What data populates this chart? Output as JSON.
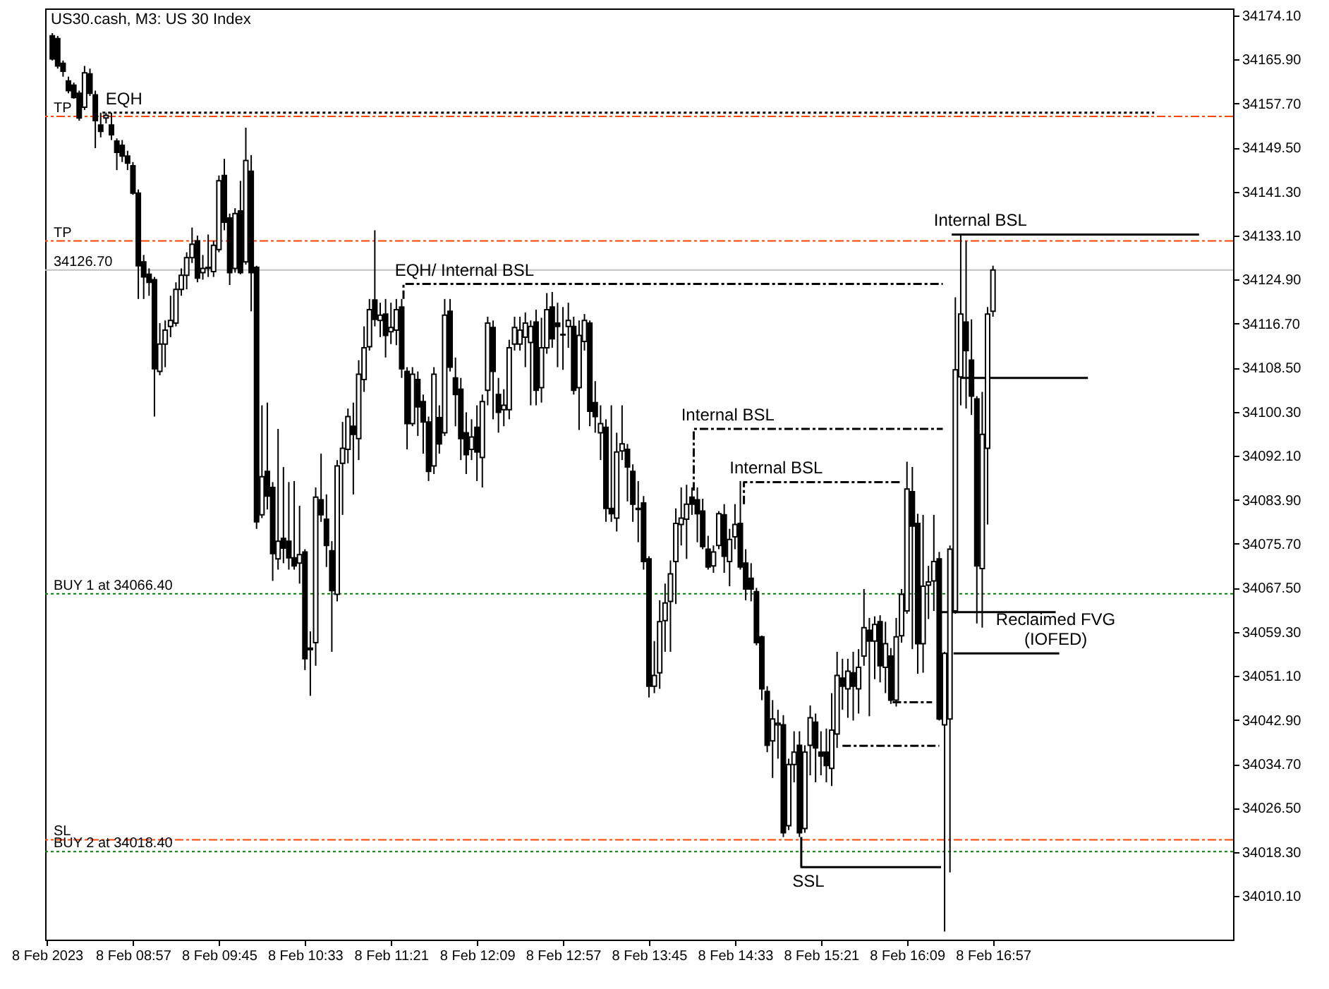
{
  "chart_data": {
    "type": "candlestick",
    "title": "US30.cash, M3:  US 30 Index",
    "color": "#000000",
    "xlim": [
      "2023-02-08T08:08",
      "2023-02-08T19:11"
    ],
    "xticks": [
      {
        "value": "2023-02-08T08:09",
        "label": "8 Feb 2023"
      },
      {
        "value": "2023-02-08T08:57",
        "label": "8 Feb 08:57"
      },
      {
        "value": "2023-02-08T09:45",
        "label": "8 Feb 09:45"
      },
      {
        "value": "2023-02-08T10:33",
        "label": "8 Feb 10:33"
      },
      {
        "value": "2023-02-08T11:21",
        "label": "8 Feb 11:21"
      },
      {
        "value": "2023-02-08T12:09",
        "label": "8 Feb 12:09"
      },
      {
        "value": "2023-02-08T12:57",
        "label": "8 Feb 12:57"
      },
      {
        "value": "2023-02-08T13:45",
        "label": "8 Feb 13:45"
      },
      {
        "value": "2023-02-08T14:33",
        "label": "8 Feb 14:33"
      },
      {
        "value": "2023-02-08T15:21",
        "label": "8 Feb 15:21"
      },
      {
        "value": "2023-02-08T16:09",
        "label": "8 Feb 16:09"
      },
      {
        "value": "2023-02-08T16:57",
        "label": "8 Feb 16:57"
      }
    ],
    "ylim": [
      34002.0,
      34175.4
    ],
    "yticks": [
      {
        "value": 34174.1,
        "label": "34174.10"
      },
      {
        "value": 34165.9,
        "label": "34165.90"
      },
      {
        "value": 34157.7,
        "label": "34157.70"
      },
      {
        "value": 34149.5,
        "label": "34149.50"
      },
      {
        "value": 34141.3,
        "label": "34141.30"
      },
      {
        "value": 34133.1,
        "label": "34133.10"
      },
      {
        "value": 34124.9,
        "label": "34124.90"
      },
      {
        "value": 34116.7,
        "label": "34116.70"
      },
      {
        "value": 34108.5,
        "label": "34108.50"
      },
      {
        "value": 34100.3,
        "label": "34100.30"
      },
      {
        "value": 34092.1,
        "label": "34092.10"
      },
      {
        "value": 34083.9,
        "label": "34083.90"
      },
      {
        "value": 34075.7,
        "label": "34075.70"
      },
      {
        "value": 34067.5,
        "label": "34067.50"
      },
      {
        "value": 34059.3,
        "label": "34059.30"
      },
      {
        "value": 34051.1,
        "label": "34051.10"
      },
      {
        "value": 34042.9,
        "label": "34042.90"
      },
      {
        "value": 34034.7,
        "label": "34034.70"
      },
      {
        "value": 34026.5,
        "label": "34026.50"
      },
      {
        "value": 34018.3,
        "label": "34018.30"
      },
      {
        "value": 34010.1,
        "label": "34010.10"
      }
    ],
    "x": [
      "2023-02-08T08:12",
      "2023-02-08T08:15",
      "2023-02-08T08:18",
      "2023-02-08T08:21",
      "2023-02-08T08:24",
      "2023-02-08T08:27",
      "2023-02-08T08:30",
      "2023-02-08T08:33",
      "2023-02-08T08:36",
      "2023-02-08T08:39",
      "2023-02-08T08:42",
      "2023-02-08T08:45",
      "2023-02-08T08:48",
      "2023-02-08T08:51",
      "2023-02-08T08:54",
      "2023-02-08T08:57",
      "2023-02-08T09:00",
      "2023-02-08T09:03",
      "2023-02-08T09:06",
      "2023-02-08T09:09",
      "2023-02-08T09:12",
      "2023-02-08T09:15",
      "2023-02-08T09:18",
      "2023-02-08T09:21",
      "2023-02-08T09:24",
      "2023-02-08T09:27",
      "2023-02-08T09:30",
      "2023-02-08T09:33",
      "2023-02-08T09:36",
      "2023-02-08T09:39",
      "2023-02-08T09:42",
      "2023-02-08T09:45",
      "2023-02-08T09:48",
      "2023-02-08T09:51",
      "2023-02-08T09:54",
      "2023-02-08T09:57",
      "2023-02-08T10:00",
      "2023-02-08T10:03",
      "2023-02-08T10:06",
      "2023-02-08T10:09",
      "2023-02-08T10:12",
      "2023-02-08T10:15",
      "2023-02-08T10:18",
      "2023-02-08T10:21",
      "2023-02-08T10:24",
      "2023-02-08T10:27",
      "2023-02-08T10:30",
      "2023-02-08T10:33",
      "2023-02-08T10:36",
      "2023-02-08T10:39",
      "2023-02-08T10:42",
      "2023-02-08T10:45",
      "2023-02-08T10:48",
      "2023-02-08T10:51",
      "2023-02-08T10:54",
      "2023-02-08T10:57",
      "2023-02-08T11:00",
      "2023-02-08T11:03",
      "2023-02-08T11:06",
      "2023-02-08T11:09",
      "2023-02-08T11:12",
      "2023-02-08T11:15",
      "2023-02-08T11:18",
      "2023-02-08T11:21",
      "2023-02-08T11:24",
      "2023-02-08T11:27",
      "2023-02-08T11:30",
      "2023-02-08T11:33",
      "2023-02-08T11:36",
      "2023-02-08T11:39",
      "2023-02-08T11:42",
      "2023-02-08T11:45",
      "2023-02-08T11:48",
      "2023-02-08T11:51",
      "2023-02-08T11:54",
      "2023-02-08T11:57",
      "2023-02-08T12:00",
      "2023-02-08T12:03",
      "2023-02-08T12:06",
      "2023-02-08T12:09",
      "2023-02-08T12:12",
      "2023-02-08T12:15",
      "2023-02-08T12:18",
      "2023-02-08T12:21",
      "2023-02-08T12:24",
      "2023-02-08T12:27",
      "2023-02-08T12:30",
      "2023-02-08T12:33",
      "2023-02-08T12:36",
      "2023-02-08T12:39",
      "2023-02-08T12:42",
      "2023-02-08T12:45",
      "2023-02-08T12:48",
      "2023-02-08T12:51",
      "2023-02-08T12:54",
      "2023-02-08T12:57",
      "2023-02-08T13:00",
      "2023-02-08T13:03",
      "2023-02-08T13:06",
      "2023-02-08T13:09",
      "2023-02-08T13:12",
      "2023-02-08T13:15",
      "2023-02-08T13:18",
      "2023-02-08T13:21",
      "2023-02-08T13:24",
      "2023-02-08T13:27",
      "2023-02-08T13:30",
      "2023-02-08T13:33",
      "2023-02-08T13:36",
      "2023-02-08T13:39",
      "2023-02-08T13:42",
      "2023-02-08T13:45",
      "2023-02-08T13:48",
      "2023-02-08T13:51",
      "2023-02-08T13:54",
      "2023-02-08T13:57",
      "2023-02-08T14:00",
      "2023-02-08T14:03",
      "2023-02-08T14:06",
      "2023-02-08T14:09",
      "2023-02-08T14:12",
      "2023-02-08T14:15",
      "2023-02-08T14:18",
      "2023-02-08T14:21",
      "2023-02-08T14:24",
      "2023-02-08T14:27",
      "2023-02-08T14:30",
      "2023-02-08T14:33",
      "2023-02-08T14:36",
      "2023-02-08T14:39",
      "2023-02-08T14:42",
      "2023-02-08T14:45",
      "2023-02-08T14:48",
      "2023-02-08T14:51",
      "2023-02-08T14:54",
      "2023-02-08T14:57",
      "2023-02-08T15:00",
      "2023-02-08T15:03",
      "2023-02-08T15:06",
      "2023-02-08T15:09",
      "2023-02-08T15:12",
      "2023-02-08T15:15",
      "2023-02-08T15:18",
      "2023-02-08T15:21",
      "2023-02-08T15:24",
      "2023-02-08T15:27",
      "2023-02-08T15:30",
      "2023-02-08T15:33",
      "2023-02-08T15:36",
      "2023-02-08T15:39",
      "2023-02-08T15:42",
      "2023-02-08T15:45",
      "2023-02-08T15:48",
      "2023-02-08T15:51",
      "2023-02-08T15:54",
      "2023-02-08T15:57",
      "2023-02-08T16:00",
      "2023-02-08T16:03",
      "2023-02-08T16:06",
      "2023-02-08T16:09",
      "2023-02-08T16:12",
      "2023-02-08T16:15",
      "2023-02-08T16:18",
      "2023-02-08T16:21",
      "2023-02-08T16:24",
      "2023-02-08T16:27",
      "2023-02-08T16:30",
      "2023-02-08T16:33",
      "2023-02-08T16:36",
      "2023-02-08T16:39",
      "2023-02-08T16:42",
      "2023-02-08T16:45",
      "2023-02-08T16:48",
      "2023-02-08T16:51",
      "2023-02-08T16:54",
      "2023-02-08T16:57"
    ],
    "ohlc": [
      [
        34170.3,
        34170.8,
        34165.7,
        34166.0
      ],
      [
        34169.8,
        34170.3,
        34164.2,
        34164.7
      ],
      [
        34165.2,
        34165.7,
        34162.7,
        34163.7
      ],
      [
        34161.9,
        34162.7,
        34159.6,
        34160.1
      ],
      [
        34161.1,
        34161.6,
        34158.6,
        34158.8
      ],
      [
        34159.6,
        34160.1,
        34154.5,
        34155.0
      ],
      [
        34157.0,
        34164.7,
        34156.5,
        34163.4
      ],
      [
        34163.2,
        34164.2,
        34159.1,
        34159.6
      ],
      [
        34159.3,
        34160.1,
        34149.4,
        34154.5
      ],
      [
        34153.7,
        34156.0,
        34151.4,
        34152.5
      ],
      [
        34155.0,
        34156.0,
        34154.0,
        34155.5
      ],
      [
        34153.7,
        34156.0,
        34150.9,
        34151.9
      ],
      [
        34150.7,
        34151.2,
        34145.3,
        34148.6
      ],
      [
        34149.9,
        34150.9,
        34146.8,
        34147.9
      ],
      [
        34147.9,
        34148.9,
        34145.3,
        34146.6
      ],
      [
        34146.1,
        34146.8,
        34140.7,
        34141.0
      ],
      [
        34141.0,
        34141.7,
        34121.3,
        34127.5
      ],
      [
        34128.2,
        34129.5,
        34121.3,
        34125.4
      ],
      [
        34125.9,
        34127.0,
        34121.9,
        34124.4
      ],
      [
        34124.9,
        34125.4,
        34099.4,
        34108.3
      ],
      [
        34107.8,
        34116.8,
        34107.1,
        34112.9
      ],
      [
        34112.9,
        34117.3,
        34108.6,
        34115.5
      ],
      [
        34116.2,
        34121.9,
        34114.2,
        34117.3
      ],
      [
        34116.8,
        34124.4,
        34116.2,
        34123.1
      ],
      [
        34123.1,
        34127.0,
        34121.9,
        34125.7
      ],
      [
        34125.7,
        34130.0,
        34123.1,
        34129.0
      ],
      [
        34129.0,
        34134.6,
        34128.0,
        34131.5
      ],
      [
        34132.1,
        34133.1,
        34124.4,
        34125.2
      ],
      [
        34126.2,
        34129.5,
        34124.9,
        34127.0
      ],
      [
        34127.2,
        34133.3,
        34125.4,
        34127.0
      ],
      [
        34126.4,
        34132.1,
        34125.4,
        34131.3
      ],
      [
        34130.5,
        34144.3,
        34130.0,
        34143.3
      ],
      [
        34144.3,
        34147.4,
        34134.1,
        34135.6
      ],
      [
        34136.4,
        34137.2,
        34123.9,
        34126.2
      ],
      [
        34127.0,
        34138.2,
        34126.2,
        34137.2
      ],
      [
        34137.7,
        34143.3,
        34125.9,
        34126.2
      ],
      [
        34128.2,
        34153.2,
        34127.7,
        34147.1
      ],
      [
        34145.1,
        34148.1,
        34119.0,
        34126.2
      ],
      [
        34127.2,
        34127.5,
        34078.5,
        34079.8
      ],
      [
        34081.1,
        34101.5,
        34080.5,
        34088.2
      ],
      [
        34089.2,
        34102.0,
        34082.1,
        34084.6
      ],
      [
        34086.2,
        34087.2,
        34068.8,
        34073.9
      ],
      [
        34072.9,
        34097.1,
        34070.9,
        34076.2
      ],
      [
        34076.7,
        34090.0,
        34072.1,
        34074.9
      ],
      [
        34076.2,
        34087.2,
        34070.9,
        34073.1
      ],
      [
        34073.1,
        34087.4,
        34070.9,
        34071.6
      ],
      [
        34072.1,
        34082.8,
        34068.3,
        34073.7
      ],
      [
        34074.2,
        34074.7,
        34052.2,
        34054.3
      ],
      [
        34056.3,
        34059.4,
        34047.4,
        34056.0
      ],
      [
        34057.3,
        34086.2,
        34053.0,
        34084.4
      ],
      [
        34083.9,
        34092.5,
        34079.8,
        34081.1
      ],
      [
        34080.3,
        34084.9,
        34071.4,
        34075.4
      ],
      [
        34074.4,
        34076.2,
        34055.6,
        34067.0
      ],
      [
        34066.3,
        34091.3,
        34065.0,
        34090.2
      ],
      [
        34090.7,
        34098.4,
        34081.1,
        34093.5
      ],
      [
        34093.3,
        34100.9,
        34090.7,
        34099.4
      ],
      [
        34097.6,
        34102.0,
        34084.9,
        34096.1
      ],
      [
        34095.3,
        34109.9,
        34091.3,
        34107.3
      ],
      [
        34106.3,
        34116.2,
        34104.0,
        34112.2
      ],
      [
        34112.4,
        34121.3,
        34111.7,
        34119.3
      ],
      [
        34121.1,
        34134.1,
        34116.2,
        34117.5
      ],
      [
        34117.3,
        34120.6,
        34114.2,
        34118.3
      ],
      [
        34118.5,
        34121.3,
        34110.4,
        34114.5
      ],
      [
        34115.2,
        34120.6,
        34112.9,
        34116.0
      ],
      [
        34115.5,
        34121.3,
        34112.7,
        34119.3
      ],
      [
        34119.8,
        34121.3,
        34106.6,
        34108.3
      ],
      [
        34107.8,
        34108.6,
        34093.3,
        34098.1
      ],
      [
        34098.1,
        34108.6,
        34097.6,
        34107.3
      ],
      [
        34106.3,
        34107.8,
        34095.8,
        34101.2
      ],
      [
        34102.2,
        34103.5,
        34092.5,
        34098.4
      ],
      [
        34098.4,
        34099.4,
        34087.4,
        34089.2
      ],
      [
        34090.2,
        34108.6,
        34088.7,
        34107.3
      ],
      [
        34099.2,
        34101.5,
        34092.5,
        34094.3
      ],
      [
        34096.4,
        34121.3,
        34095.8,
        34118.3
      ],
      [
        34119.0,
        34121.3,
        34107.8,
        34108.6
      ],
      [
        34106.6,
        34110.4,
        34097.6,
        34103.5
      ],
      [
        34104.5,
        34106.6,
        34091.3,
        34095.3
      ],
      [
        34096.4,
        34100.2,
        34088.7,
        34092.3
      ],
      [
        34093.3,
        34098.9,
        34091.3,
        34095.6
      ],
      [
        34097.4,
        34101.5,
        34087.4,
        34092.8
      ],
      [
        34091.8,
        34103.5,
        34086.2,
        34102.2
      ],
      [
        34104.3,
        34118.0,
        34101.5,
        34116.8
      ],
      [
        34116.0,
        34117.3,
        34098.9,
        34107.8
      ],
      [
        34103.5,
        34106.6,
        34096.4,
        34100.2
      ],
      [
        34100.7,
        34104.5,
        34097.6,
        34101.5
      ],
      [
        34100.7,
        34113.7,
        34098.9,
        34112.2
      ],
      [
        34112.9,
        34118.0,
        34111.7,
        34116.0
      ],
      [
        34112.9,
        34118.0,
        34111.7,
        34115.5
      ],
      [
        34114.2,
        34118.8,
        34108.6,
        34116.8
      ],
      [
        34113.2,
        34117.3,
        34101.5,
        34116.2
      ],
      [
        34117.0,
        34119.3,
        34101.5,
        34104.3
      ],
      [
        34104.8,
        34117.8,
        34102.0,
        34112.2
      ],
      [
        34112.2,
        34122.4,
        34111.1,
        34119.3
      ],
      [
        34119.8,
        34122.6,
        34112.2,
        34113.9
      ],
      [
        34116.8,
        34120.6,
        34108.6,
        34116.2
      ],
      [
        34114.7,
        34119.8,
        34108.1,
        34114.6
      ],
      [
        34116.2,
        34120.6,
        34112.2,
        34117.3
      ],
      [
        34116.2,
        34118.0,
        34103.5,
        34104.3
      ],
      [
        34104.8,
        34117.3,
        34096.9,
        34114.5
      ],
      [
        34113.4,
        34118.5,
        34111.7,
        34117.3
      ],
      [
        34116.8,
        34117.3,
        34097.6,
        34100.4
      ],
      [
        34102.0,
        34106.0,
        34096.4,
        34099.4
      ],
      [
        34096.4,
        34101.5,
        34091.3,
        34098.1
      ],
      [
        34097.4,
        34098.9,
        34079.8,
        34082.3
      ],
      [
        34082.3,
        34101.5,
        34079.8,
        34081.3
      ],
      [
        34080.5,
        34096.4,
        34078.0,
        34092.8
      ],
      [
        34093.0,
        34101.5,
        34091.3,
        34094.3
      ],
      [
        34093.3,
        34094.3,
        34083.6,
        34090.0
      ],
      [
        34089.2,
        34090.5,
        34079.8,
        34083.1
      ],
      [
        34082.3,
        34087.4,
        34076.0,
        34082.1
      ],
      [
        34083.3,
        34084.6,
        34070.9,
        34072.4
      ],
      [
        34072.9,
        34073.4,
        34047.1,
        34049.2
      ],
      [
        34049.2,
        34057.6,
        34047.9,
        34051.2
      ],
      [
        34051.7,
        34065.2,
        34048.7,
        34061.2
      ],
      [
        34061.4,
        34068.3,
        34055.6,
        34064.7
      ],
      [
        34065.0,
        34072.6,
        34055.6,
        34070.1
      ],
      [
        34072.4,
        34082.3,
        34064.5,
        34079.5
      ],
      [
        34079.3,
        34086.2,
        34075.4,
        34080.5
      ],
      [
        34080.3,
        34086.7,
        34072.9,
        34083.1
      ],
      [
        34084.4,
        34086.2,
        34081.1,
        34083.1
      ],
      [
        34083.9,
        34086.2,
        34076.0,
        34081.3
      ],
      [
        34081.8,
        34084.1,
        34074.7,
        34075.2
      ],
      [
        34074.7,
        34077.2,
        34070.9,
        34071.4
      ],
      [
        34071.6,
        34075.4,
        34070.3,
        34074.2
      ],
      [
        34075.4,
        34081.8,
        34074.7,
        34081.3
      ],
      [
        34081.1,
        34083.1,
        34070.3,
        34073.4
      ],
      [
        34072.4,
        34078.5,
        34067.8,
        34076.5
      ],
      [
        34077.0,
        34083.1,
        34074.7,
        34079.3
      ],
      [
        34079.5,
        34087.4,
        34070.9,
        34071.4
      ],
      [
        34072.1,
        34074.7,
        34065.2,
        34067.3
      ],
      [
        34069.3,
        34072.1,
        34065.0,
        34067.3
      ],
      [
        34066.8,
        34067.5,
        34056.8,
        34057.3
      ],
      [
        34058.4,
        34058.6,
        34046.6,
        34048.7
      ],
      [
        34048.2,
        34049.2,
        34036.9,
        34038.2
      ],
      [
        34039.0,
        34046.6,
        34032.1,
        34043.1
      ],
      [
        34042.0,
        34044.8,
        34035.7,
        34042.3
      ],
      [
        34042.0,
        34043.8,
        34021.1,
        34021.9
      ],
      [
        34023.2,
        34035.7,
        34022.4,
        34034.6
      ],
      [
        34034.6,
        34040.8,
        34031.3,
        34036.9
      ],
      [
        34038.2,
        34040.8,
        34021.1,
        34021.9
      ],
      [
        34022.7,
        34038.2,
        34021.9,
        34036.9
      ],
      [
        34038.2,
        34045.6,
        34032.6,
        34043.3
      ],
      [
        34042.5,
        34044.1,
        34031.3,
        34037.7
      ],
      [
        34036.9,
        34040.8,
        34032.6,
        34036.2
      ],
      [
        34036.9,
        34041.3,
        34031.3,
        34034.4
      ],
      [
        34033.9,
        34047.9,
        34030.6,
        34041.0
      ],
      [
        34040.3,
        34055.6,
        34037.7,
        34051.2
      ],
      [
        34050.7,
        34054.3,
        34044.8,
        34049.2
      ],
      [
        34048.7,
        34054.3,
        34043.3,
        34052.0
      ],
      [
        34051.7,
        34055.6,
        34042.8,
        34049.2
      ],
      [
        34048.7,
        34056.1,
        34044.1,
        34052.7
      ],
      [
        34054.8,
        34067.3,
        34053.0,
        34060.1
      ],
      [
        34059.6,
        34061.9,
        34043.6,
        34057.6
      ],
      [
        34057.6,
        34062.2,
        34050.5,
        34060.7
      ],
      [
        34061.2,
        34062.4,
        34049.9,
        34053.0
      ],
      [
        34052.7,
        34061.2,
        34047.9,
        34057.1
      ],
      [
        34054.8,
        34056.3,
        34045.9,
        34046.6
      ],
      [
        34046.6,
        34061.9,
        34045.4,
        34058.4
      ],
      [
        34058.6,
        34067.3,
        34057.3,
        34066.3
      ],
      [
        34063.2,
        34091.0,
        34062.7,
        34085.9
      ],
      [
        34085.4,
        34090.0,
        34056.1,
        34079.0
      ],
      [
        34079.5,
        34081.3,
        34051.5,
        34057.1
      ],
      [
        34057.1,
        34081.1,
        34051.7,
        34067.8
      ],
      [
        34068.0,
        34071.6,
        34061.7,
        34068.6
      ],
      [
        34068.8,
        34081.1,
        34063.2,
        34072.4
      ],
      [
        34072.9,
        34074.2,
        34042.8,
        34043.1
      ],
      [
        34042.0,
        34055.6,
        34003.5,
        34055.3
      ],
      [
        34043.1,
        34075.4,
        34014.5,
        34074.7
      ],
      [
        34063.2,
        34121.6,
        34062.7,
        34108.1
      ],
      [
        34106.8,
        34133.3,
        34101.5,
        34118.5
      ],
      [
        34117.0,
        34132.1,
        34100.9,
        34111.7
      ],
      [
        34109.9,
        34117.5,
        34099.7,
        34103.2
      ],
      [
        34102.7,
        34103.2,
        34060.9,
        34071.6
      ],
      [
        34071.1,
        34104.0,
        34060.1,
        34096.1
      ],
      [
        34093.5,
        34119.8,
        34079.3,
        34118.5
      ],
      [
        34119.0,
        34127.5,
        34118.0,
        34126.7
      ]
    ],
    "series": [
      {
        "type": "line",
        "x": [
          "2023-02-08T08:40",
          "2023-02-08T18:27"
        ],
        "values": [
          34156.0,
          34156.0
        ],
        "color": "#000000",
        "line_style": "dotted"
      },
      {
        "type": "line",
        "x": [
          "2023-02-08T11:28",
          "2023-02-08T11:28",
          "2023-02-08T16:29"
        ],
        "values": [
          34121.3,
          34124.1,
          34124.1
        ],
        "color": "#000000",
        "line_style": "dashed"
      },
      {
        "type": "line",
        "x": [
          "2023-02-08T14:10",
          "2023-02-08T14:10",
          "2023-02-08T16:29"
        ],
        "values": [
          34085.6,
          34097.1,
          34097.1
        ],
        "color": "#000000",
        "line_style": "dashed"
      },
      {
        "type": "line",
        "x": [
          "2023-02-08T14:38",
          "2023-02-08T14:38",
          "2023-02-08T16:05"
        ],
        "values": [
          34083.1,
          34087.2,
          34087.2
        ],
        "color": "#000000",
        "line_style": "dashed"
      },
      {
        "type": "line",
        "x": [
          "2023-02-08T15:33",
          "2023-02-08T16:27"
        ],
        "values": [
          34038.1,
          34038.1
        ],
        "color": "#000000",
        "line_style": "dashed"
      },
      {
        "type": "line",
        "x": [
          "2023-02-08T16:01",
          "2023-02-08T16:23"
        ],
        "values": [
          34046.2,
          34046.2
        ],
        "color": "#000000",
        "line_style": "dashed"
      },
      {
        "type": "line",
        "x": [
          "2023-02-08T15:10",
          "2023-02-08T15:10",
          "2023-02-08T16:28"
        ],
        "values": [
          34021.1,
          34015.5,
          34015.5
        ],
        "color": "#000000",
        "line_style": "solid"
      },
      {
        "type": "line",
        "x": [
          "2023-02-08T16:34",
          "2023-02-08T18:52"
        ],
        "values": [
          34133.3,
          34133.3
        ],
        "color": "#000000",
        "line_style": "solid"
      },
      {
        "type": "line",
        "x": [
          "2023-02-08T16:39",
          "2023-02-08T17:50"
        ],
        "values": [
          34106.6,
          34106.6
        ],
        "color": "#000000",
        "line_style": "solid"
      },
      {
        "type": "line",
        "x": [
          "2023-02-08T16:28",
          "2023-02-08T17:32"
        ],
        "values": [
          34063.0,
          34063.0
        ],
        "color": "#000000",
        "line_style": "solid"
      },
      {
        "type": "line",
        "x": [
          "2023-02-08T16:35",
          "2023-02-08T17:34"
        ],
        "values": [
          34055.3,
          34055.3
        ],
        "color": "#000000",
        "line_style": "solid"
      }
    ],
    "ref_lines": [
      {
        "axis": "y",
        "value": 34155.3,
        "label": "TP",
        "color": "#ff4500",
        "line_style": "dashed"
      },
      {
        "axis": "y",
        "value": 34132.1,
        "label": "TP",
        "color": "#ff4500",
        "line_style": "dashed"
      },
      {
        "axis": "y",
        "value": 34126.7,
        "label": "34126.70",
        "color": "#c0c0c0",
        "line_style": "solid"
      },
      {
        "axis": "y",
        "value": 34066.4,
        "label": "BUY 1 at 34066.40",
        "color": "#008000",
        "line_style": "dotted"
      },
      {
        "axis": "y",
        "value": 34020.6,
        "label": "SL",
        "color": "#ff4500",
        "line_style": "dashed"
      },
      {
        "axis": "y",
        "value": 34018.4,
        "label": "BUY 2 at 34018.40",
        "color": "#008000",
        "line_style": "dotted"
      }
    ],
    "annotations": [
      {
        "text": "EQH",
        "x": "2023-02-08T08:52",
        "y": 34156.0
      },
      {
        "text": "EQH/ Internal BSL",
        "x": "2023-02-08T12:02",
        "y": 34124.1
      },
      {
        "text": "Internal BSL",
        "x": "2023-02-08T14:29",
        "y": 34097.1
      },
      {
        "text": "Internal BSL",
        "x": "2023-02-08T14:56",
        "y": 34087.2
      },
      {
        "text": "Internal BSL",
        "x": "2023-02-08T16:50",
        "y": 34133.3
      },
      {
        "text": "SSL",
        "x": "2023-02-08T15:14",
        "y": 34015.5
      },
      {
        "text": "Reclaimed FVG\n(IOFED)",
        "x": "2023-02-08T17:32",
        "y": 34055.3
      }
    ]
  }
}
